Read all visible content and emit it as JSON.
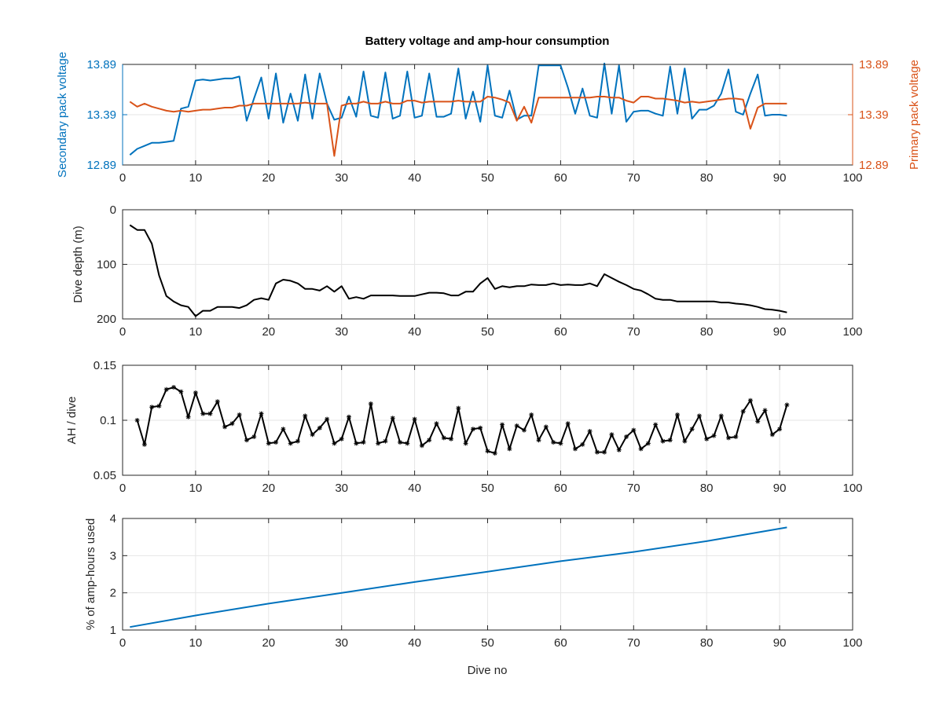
{
  "figure": {
    "title": "Battery voltage and amp-hour consumption",
    "xlabel": "Dive no"
  },
  "chart_data": [
    {
      "type": "line",
      "title": "Battery voltage and amp-hour consumption",
      "xlabel": "",
      "xlim": [
        0,
        100
      ],
      "xticks": [
        0,
        10,
        20,
        30,
        40,
        50,
        60,
        70,
        80,
        90,
        100
      ],
      "grid": true,
      "left_axis": {
        "label": "Secondary pack voltage",
        "color": "#0072BD",
        "ylim": [
          12.89,
          13.89
        ],
        "yticks": [
          "12.89",
          "13.39",
          "13.89"
        ]
      },
      "right_axis": {
        "label": "Primary pack voltage",
        "color": "#D95319",
        "ylim": [
          12.89,
          13.89
        ],
        "yticks": [
          "12.89",
          "13.39",
          "13.89"
        ]
      },
      "series": [
        {
          "name": "Secondary pack voltage",
          "axis": "left",
          "color": "#0072BD",
          "x": [
            1,
            2,
            3,
            4,
            5,
            6,
            7,
            8,
            9,
            10,
            11,
            12,
            13,
            14,
            15,
            16,
            17,
            18,
            19,
            20,
            21,
            22,
            23,
            24,
            25,
            26,
            27,
            28,
            29,
            30,
            31,
            32,
            33,
            34,
            35,
            36,
            37,
            38,
            39,
            40,
            41,
            42,
            43,
            44,
            45,
            46,
            47,
            48,
            49,
            50,
            51,
            52,
            53,
            54,
            55,
            56,
            57,
            58,
            59,
            60,
            61,
            62,
            63,
            64,
            65,
            66,
            67,
            68,
            69,
            70,
            71,
            72,
            73,
            74,
            75,
            76,
            77,
            78,
            79,
            80,
            81,
            82,
            83,
            84,
            85,
            86,
            87,
            88,
            89,
            90,
            91
          ],
          "y": [
            12.99,
            13.05,
            13.08,
            13.11,
            13.11,
            13.12,
            13.13,
            13.45,
            13.47,
            13.73,
            13.74,
            13.73,
            13.74,
            13.75,
            13.75,
            13.77,
            13.33,
            13.55,
            13.76,
            13.35,
            13.8,
            13.31,
            13.6,
            13.33,
            13.79,
            13.35,
            13.8,
            13.5,
            13.34,
            13.36,
            13.57,
            13.37,
            13.82,
            13.38,
            13.36,
            13.81,
            13.35,
            13.38,
            13.82,
            13.36,
            13.38,
            13.8,
            13.37,
            13.37,
            13.4,
            13.85,
            13.35,
            13.62,
            13.32,
            13.88,
            13.38,
            13.36,
            13.63,
            13.34,
            13.38,
            13.38,
            13.88,
            13.88,
            13.88,
            13.88,
            13.66,
            13.4,
            13.65,
            13.38,
            13.36,
            13.9,
            13.4,
            13.88,
            13.32,
            13.42,
            13.43,
            13.43,
            13.4,
            13.38,
            13.87,
            13.4,
            13.85,
            13.35,
            13.44,
            13.44,
            13.48,
            13.6,
            13.84,
            13.42,
            13.39,
            13.6,
            13.79,
            13.38,
            13.39,
            13.39,
            13.38
          ]
        },
        {
          "name": "Primary pack voltage",
          "axis": "right",
          "color": "#D95319",
          "x": [
            1,
            2,
            3,
            4,
            5,
            6,
            7,
            8,
            9,
            10,
            11,
            12,
            13,
            14,
            15,
            16,
            17,
            18,
            19,
            20,
            21,
            22,
            23,
            24,
            25,
            26,
            27,
            28,
            29,
            30,
            31,
            32,
            33,
            34,
            35,
            36,
            37,
            38,
            39,
            40,
            41,
            42,
            43,
            44,
            45,
            46,
            47,
            48,
            49,
            50,
            51,
            52,
            53,
            54,
            55,
            56,
            57,
            58,
            59,
            60,
            61,
            62,
            63,
            64,
            65,
            66,
            67,
            68,
            69,
            70,
            71,
            72,
            73,
            74,
            75,
            76,
            77,
            78,
            79,
            80,
            81,
            82,
            83,
            84,
            85,
            86,
            87,
            88,
            89,
            90,
            91
          ],
          "y": [
            13.52,
            13.47,
            13.5,
            13.47,
            13.45,
            13.43,
            13.42,
            13.43,
            13.42,
            13.43,
            13.44,
            13.44,
            13.45,
            13.46,
            13.46,
            13.48,
            13.48,
            13.5,
            13.5,
            13.5,
            13.5,
            13.5,
            13.5,
            13.5,
            13.51,
            13.5,
            13.5,
            13.5,
            12.98,
            13.48,
            13.5,
            13.5,
            13.52,
            13.5,
            13.5,
            13.52,
            13.5,
            13.5,
            13.53,
            13.53,
            13.51,
            13.52,
            13.52,
            13.52,
            13.52,
            13.53,
            13.52,
            13.52,
            13.52,
            13.57,
            13.56,
            13.54,
            13.51,
            13.33,
            13.47,
            13.31,
            13.56,
            13.56,
            13.56,
            13.56,
            13.56,
            13.56,
            13.56,
            13.56,
            13.57,
            13.57,
            13.56,
            13.56,
            13.53,
            13.51,
            13.57,
            13.57,
            13.55,
            13.55,
            13.54,
            13.53,
            13.51,
            13.52,
            13.51,
            13.52,
            13.53,
            13.54,
            13.55,
            13.55,
            13.54,
            13.25,
            13.46,
            13.5,
            13.5,
            13.5,
            13.5
          ]
        }
      ]
    },
    {
      "type": "line",
      "ylabel": "Dive depth (m)",
      "xlim": [
        0,
        100
      ],
      "xticks": [
        0,
        10,
        20,
        30,
        40,
        50,
        60,
        70,
        80,
        90,
        100
      ],
      "ylim": [
        0,
        200
      ],
      "yticks": [
        0,
        100,
        200
      ],
      "y_reversed": true,
      "grid": true,
      "series": [
        {
          "color": "#000000",
          "x": [
            1,
            2,
            3,
            4,
            5,
            6,
            7,
            8,
            9,
            10,
            11,
            12,
            13,
            14,
            15,
            16,
            17,
            18,
            19,
            20,
            21,
            22,
            23,
            24,
            25,
            26,
            27,
            28,
            29,
            30,
            31,
            32,
            33,
            34,
            35,
            36,
            37,
            38,
            39,
            40,
            41,
            42,
            43,
            44,
            45,
            46,
            47,
            48,
            49,
            50,
            51,
            52,
            53,
            54,
            55,
            56,
            57,
            58,
            59,
            60,
            61,
            62,
            63,
            64,
            65,
            66,
            67,
            68,
            69,
            70,
            71,
            72,
            73,
            74,
            75,
            76,
            77,
            78,
            79,
            80,
            81,
            82,
            83,
            84,
            85,
            86,
            87,
            88,
            89,
            90,
            91
          ],
          "y": [
            28,
            37,
            37,
            62,
            120,
            158,
            168,
            175,
            178,
            195,
            185,
            185,
            178,
            178,
            178,
            180,
            175,
            165,
            162,
            165,
            135,
            128,
            130,
            135,
            145,
            145,
            148,
            140,
            150,
            140,
            163,
            160,
            163,
            157,
            157,
            157,
            157,
            158,
            158,
            158,
            155,
            152,
            152,
            153,
            157,
            157,
            150,
            150,
            135,
            125,
            145,
            140,
            142,
            140,
            140,
            137,
            138,
            138,
            135,
            138,
            137,
            138,
            138,
            135,
            140,
            118,
            125,
            132,
            138,
            145,
            148,
            155,
            163,
            165,
            165,
            168,
            168,
            168,
            168,
            168,
            168,
            170,
            170,
            172,
            173,
            175,
            178,
            182,
            183,
            185,
            188
          ]
        }
      ]
    },
    {
      "type": "line",
      "ylabel": "AH / dive",
      "xlim": [
        0,
        100
      ],
      "xticks": [
        0,
        10,
        20,
        30,
        40,
        50,
        60,
        70,
        80,
        90,
        100
      ],
      "ylim": [
        0.05,
        0.15
      ],
      "yticks": [
        "0.05",
        "0.1",
        "0.15"
      ],
      "grid": true,
      "marker": "*",
      "series": [
        {
          "color": "#000000",
          "x": [
            2,
            3,
            4,
            5,
            6,
            7,
            8,
            9,
            10,
            11,
            12,
            13,
            14,
            15,
            16,
            17,
            18,
            19,
            20,
            21,
            22,
            23,
            24,
            25,
            26,
            27,
            28,
            29,
            30,
            31,
            32,
            33,
            34,
            35,
            36,
            37,
            38,
            39,
            40,
            41,
            42,
            43,
            44,
            45,
            46,
            47,
            48,
            49,
            50,
            51,
            52,
            53,
            54,
            55,
            56,
            57,
            58,
            59,
            60,
            61,
            62,
            63,
            64,
            65,
            66,
            67,
            68,
            69,
            70,
            71,
            72,
            73,
            74,
            75,
            76,
            77,
            78,
            79,
            80,
            81,
            82,
            83,
            84,
            85,
            86,
            87,
            88,
            89,
            90,
            91
          ],
          "y": [
            0.1,
            0.078,
            0.112,
            0.113,
            0.128,
            0.13,
            0.126,
            0.103,
            0.125,
            0.106,
            0.106,
            0.117,
            0.094,
            0.097,
            0.105,
            0.082,
            0.085,
            0.106,
            0.079,
            0.08,
            0.092,
            0.079,
            0.081,
            0.104,
            0.087,
            0.093,
            0.101,
            0.079,
            0.083,
            0.103,
            0.079,
            0.08,
            0.115,
            0.079,
            0.081,
            0.102,
            0.08,
            0.079,
            0.101,
            0.077,
            0.082,
            0.097,
            0.084,
            0.083,
            0.111,
            0.079,
            0.092,
            0.093,
            0.072,
            0.07,
            0.096,
            0.074,
            0.095,
            0.091,
            0.105,
            0.082,
            0.094,
            0.08,
            0.079,
            0.097,
            0.074,
            0.078,
            0.09,
            0.071,
            0.071,
            0.087,
            0.073,
            0.085,
            0.091,
            0.074,
            0.079,
            0.096,
            0.081,
            0.082,
            0.105,
            0.081,
            0.092,
            0.104,
            0.083,
            0.086,
            0.104,
            0.084,
            0.085,
            0.108,
            0.118,
            0.099,
            0.109,
            0.087,
            0.092,
            0.114
          ]
        }
      ]
    },
    {
      "type": "line",
      "xlabel": "Dive no",
      "ylabel": "% of amp-hours used",
      "xlim": [
        0,
        100
      ],
      "xticks": [
        0,
        10,
        20,
        30,
        40,
        50,
        60,
        70,
        80,
        90,
        100
      ],
      "ylim": [
        1,
        4
      ],
      "yticks": [
        1,
        2,
        3,
        4
      ],
      "grid": true,
      "series": [
        {
          "color": "#0072BD",
          "x": [
            1,
            10,
            20,
            30,
            40,
            50,
            60,
            70,
            80,
            91
          ],
          "y": [
            1.08,
            1.39,
            1.71,
            2.0,
            2.29,
            2.57,
            2.85,
            3.1,
            3.39,
            3.76
          ]
        }
      ]
    }
  ]
}
